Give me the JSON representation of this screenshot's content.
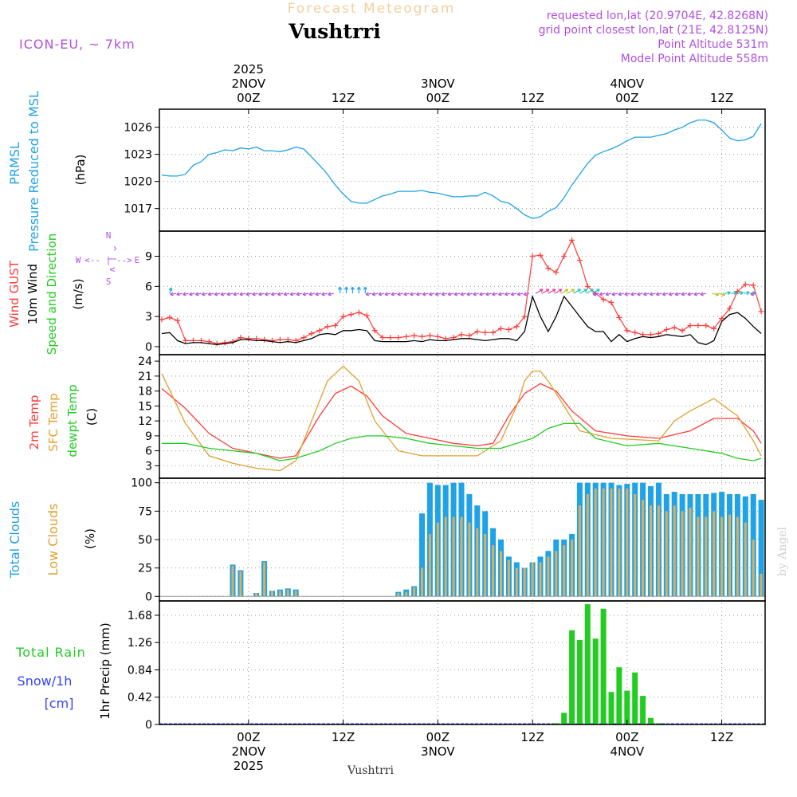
{
  "header": {
    "app_title": "Forecast Meteogram",
    "location": "Vushtrri",
    "model": "ICON-EU, ~ 7km",
    "info_lines": [
      "requested lon,lat (20.9704E, 42.8268N)",
      "grid point closest lon,lat (21E, 42.8125N)",
      "Point Altitude 531m",
      "Model Point Altitude 558m"
    ]
  },
  "time_axis": {
    "top_labels": [
      {
        "h": 24,
        "lines": [
          "2025",
          "2NOV",
          "00Z"
        ]
      },
      {
        "h": 36,
        "lines": [
          "12Z"
        ]
      },
      {
        "h": 48,
        "lines": [
          "3NOV",
          "00Z"
        ]
      },
      {
        "h": 60,
        "lines": [
          "12Z"
        ]
      },
      {
        "h": 72,
        "lines": [
          "4NOV",
          "00Z"
        ]
      },
      {
        "h": 84,
        "lines": [
          "12Z"
        ]
      }
    ],
    "bottom_labels": [
      {
        "h": 24,
        "lines": [
          "00Z",
          "2NOV",
          "2025"
        ]
      },
      {
        "h": 36,
        "lines": [
          "12Z"
        ]
      },
      {
        "h": 48,
        "lines": [
          "00Z",
          "3NOV"
        ]
      },
      {
        "h": 60,
        "lines": [
          "12Z"
        ]
      },
      {
        "h": 72,
        "lines": [
          "00Z",
          "4NOV"
        ]
      },
      {
        "h": 84,
        "lines": [
          "12Z"
        ]
      }
    ],
    "footer": "Vushtrri",
    "watermark": "by Angel"
  },
  "colors": {
    "pressure": "#1fa2e6",
    "gust": "#ff3b3b",
    "wind": "#000000",
    "green": "#22cc22",
    "orange": "#e0a030",
    "purple": "#b050e0",
    "blue_text": "#3344ff",
    "total_cloud": "#1fa2e6",
    "low_cloud": "#d8b060",
    "rain": "#22cc22",
    "grid": "#999999"
  },
  "chart_data": [
    {
      "type": "line",
      "name": "pressure",
      "labels": [
        "PRMSL",
        "Pressure Reduced to MSL",
        "(hPa)"
      ],
      "x_unit": "hours since 1 NOV 00Z",
      "xlim": [
        12.7,
        89.5
      ],
      "ylim": [
        1014.5,
        1028.0
      ],
      "yticks": [
        "1017",
        "1020",
        "1023",
        "1026"
      ],
      "series": [
        {
          "name": "PRMSL",
          "x": [
            13,
            14,
            15,
            16,
            17,
            18,
            19,
            20,
            21,
            22,
            23,
            24,
            25,
            26,
            27,
            28,
            29,
            30,
            31,
            32,
            33,
            34,
            35,
            36,
            37,
            38,
            39,
            40,
            41,
            42,
            43,
            44,
            45,
            46,
            47,
            48,
            49,
            50,
            51,
            52,
            53,
            54,
            55,
            56,
            57,
            58,
            59,
            60,
            61,
            62,
            63,
            64,
            65,
            66,
            67,
            68,
            69,
            70,
            71,
            72,
            73,
            74,
            75,
            76,
            77,
            78,
            79,
            80,
            81,
            82,
            83,
            84,
            85,
            86,
            87,
            88,
            89
          ],
          "values": [
            1020.7,
            1020.6,
            1020.6,
            1020.8,
            1021.8,
            1022.2,
            1023.0,
            1023.2,
            1023.5,
            1023.4,
            1023.7,
            1023.6,
            1023.8,
            1023.4,
            1023.4,
            1023.3,
            1023.5,
            1023.8,
            1023.6,
            1022.7,
            1021.8,
            1020.8,
            1019.6,
            1018.6,
            1017.8,
            1017.6,
            1017.6,
            1018.0,
            1018.4,
            1018.6,
            1018.9,
            1018.9,
            1018.9,
            1019.0,
            1018.8,
            1018.7,
            1018.5,
            1018.3,
            1018.3,
            1018.4,
            1018.4,
            1018.8,
            1018.4,
            1017.8,
            1017.6,
            1017.0,
            1016.3,
            1015.9,
            1016.1,
            1016.7,
            1017.1,
            1018.2,
            1019.6,
            1020.8,
            1022.0,
            1022.9,
            1023.3,
            1023.6,
            1024.0,
            1024.5,
            1024.9,
            1024.9,
            1024.9,
            1025.1,
            1025.3,
            1025.7,
            1026.0,
            1026.5,
            1026.8,
            1026.8,
            1026.5,
            1025.7,
            1024.8,
            1024.5,
            1024.6,
            1025.0,
            1026.4
          ]
        }
      ]
    },
    {
      "type": "line",
      "name": "wind",
      "labels": [
        "Wind GUST",
        "10m Wind",
        "Speed and Direction",
        "(m/s)"
      ],
      "compass": {
        "n": "N",
        "s": "S",
        "w": "W",
        "e": "E",
        "arrow_v": "^ | v",
        "arrow_h": "<-- | -->"
      },
      "xlim": [
        12.7,
        89.5
      ],
      "ylim": [
        -0.8,
        11.5
      ],
      "yticks": [
        "0",
        "3",
        "6",
        "9"
      ],
      "series": [
        {
          "name": "Wind GUST",
          "x": [
            13,
            14,
            15,
            16,
            17,
            18,
            19,
            20,
            21,
            22,
            23,
            24,
            25,
            26,
            27,
            28,
            29,
            30,
            31,
            32,
            33,
            34,
            35,
            36,
            37,
            38,
            39,
            40,
            41,
            42,
            43,
            44,
            45,
            46,
            47,
            48,
            49,
            50,
            51,
            52,
            53,
            54,
            55,
            56,
            57,
            58,
            59,
            60,
            61,
            62,
            63,
            64,
            65,
            66,
            67,
            68,
            69,
            70,
            71,
            72,
            73,
            74,
            75,
            76,
            77,
            78,
            79,
            80,
            81,
            82,
            83,
            84,
            85,
            86,
            87,
            88,
            89
          ],
          "values": [
            2.7,
            2.9,
            2.6,
            0.6,
            0.6,
            0.6,
            0.5,
            0.3,
            0.4,
            0.5,
            0.9,
            0.8,
            0.8,
            0.7,
            0.6,
            0.7,
            0.7,
            0.6,
            0.9,
            1.3,
            1.6,
            2.0,
            2.1,
            3.0,
            3.2,
            3.4,
            3.1,
            1.6,
            0.9,
            0.9,
            0.9,
            1.0,
            1.1,
            1.0,
            1.1,
            1.0,
            0.8,
            0.9,
            1.2,
            1.1,
            1.5,
            1.4,
            1.4,
            1.8,
            1.7,
            2.0,
            3.0,
            9.0,
            9.1,
            7.8,
            7.4,
            9.0,
            10.6,
            8.6,
            6.0,
            5.3,
            4.7,
            4.4,
            2.9,
            1.6,
            1.4,
            1.2,
            1.2,
            1.3,
            1.7,
            1.9,
            1.6,
            2.1,
            2.1,
            2.1,
            1.8,
            2.8,
            3.8,
            5.5,
            6.2,
            6.1,
            3.5
          ]
        },
        {
          "name": "10m Wind",
          "x": [
            13,
            14,
            15,
            16,
            17,
            18,
            19,
            20,
            21,
            22,
            23,
            24,
            25,
            26,
            27,
            28,
            29,
            30,
            31,
            32,
            33,
            34,
            35,
            36,
            37,
            38,
            39,
            40,
            41,
            42,
            43,
            44,
            45,
            46,
            47,
            48,
            49,
            50,
            51,
            52,
            53,
            54,
            55,
            56,
            57,
            58,
            59,
            60,
            61,
            62,
            63,
            64,
            65,
            66,
            67,
            68,
            69,
            70,
            71,
            72,
            73,
            74,
            75,
            76,
            77,
            78,
            79,
            80,
            81,
            82,
            83,
            84,
            85,
            86,
            87,
            88,
            89
          ],
          "values": [
            1.3,
            1.4,
            0.6,
            0.3,
            0.4,
            0.4,
            0.3,
            0.2,
            0.3,
            0.4,
            0.7,
            0.7,
            0.6,
            0.6,
            0.5,
            0.4,
            0.5,
            0.4,
            0.6,
            0.8,
            1.2,
            1.3,
            1.2,
            1.6,
            1.6,
            1.7,
            1.6,
            0.6,
            0.5,
            0.5,
            0.5,
            0.5,
            0.6,
            0.5,
            0.7,
            0.6,
            0.6,
            0.7,
            0.8,
            0.8,
            0.7,
            0.6,
            0.7,
            0.8,
            0.8,
            0.6,
            1.5,
            5.0,
            3.0,
            1.5,
            3.0,
            5.0,
            4.0,
            3.0,
            2.0,
            1.5,
            1.5,
            0.5,
            1.2,
            0.5,
            0.8,
            1.0,
            0.9,
            1.0,
            1.2,
            1.1,
            1.0,
            1.2,
            0.4,
            0.2,
            0.6,
            2.5,
            3.2,
            3.4,
            2.8,
            2.0,
            1.3
          ]
        }
      ]
    },
    {
      "type": "line",
      "name": "temperature",
      "labels": [
        "2m Temp",
        "SFC Temp",
        "dewpt Temp",
        "(C)"
      ],
      "xlim": [
        12.7,
        89.5
      ],
      "ylim": [
        0.5,
        25.3
      ],
      "yticks": [
        "3",
        "6",
        "9",
        "12",
        "15",
        "18",
        "21",
        "24"
      ],
      "series": [
        {
          "name": "2m Temp",
          "x": [
            13,
            16,
            19,
            22,
            25,
            28,
            30,
            33,
            35,
            37,
            39,
            41,
            44,
            47,
            50,
            53,
            55,
            57,
            59,
            61,
            63,
            65,
            68,
            72,
            76,
            80,
            83,
            86,
            88,
            89
          ],
          "values": [
            18.5,
            14.5,
            9.5,
            6.5,
            5.5,
            4.5,
            5.0,
            13.0,
            17.5,
            19.0,
            17.0,
            13.0,
            9.5,
            8.5,
            7.5,
            7.0,
            7.5,
            13.0,
            17.5,
            19.5,
            18.0,
            14.0,
            10.0,
            9.0,
            8.5,
            10.0,
            12.5,
            12.5,
            10.0,
            7.5
          ]
        },
        {
          "name": "SFC Temp",
          "x": [
            13,
            16,
            19,
            22,
            25,
            28,
            30,
            32,
            34,
            36,
            38,
            40,
            43,
            46,
            49,
            53,
            56,
            58,
            59,
            60,
            61,
            62,
            64,
            66,
            70,
            76,
            78,
            80,
            83,
            86,
            88,
            89
          ],
          "values": [
            21.5,
            11.5,
            5.0,
            3.5,
            2.5,
            2.0,
            4.0,
            12.0,
            20.0,
            23.0,
            20.0,
            12.0,
            6.0,
            5.0,
            5.0,
            5.0,
            8.0,
            15.0,
            20.0,
            22.0,
            22.0,
            20.0,
            15.0,
            10.0,
            8.5,
            8.0,
            12.0,
            14.0,
            16.5,
            13.0,
            8.0,
            5.0
          ]
        },
        {
          "name": "dewpt Temp",
          "x": [
            13,
            16,
            19,
            22,
            25,
            28,
            30,
            33,
            35,
            37,
            39,
            41,
            44,
            47,
            50,
            53,
            56,
            58,
            60,
            62,
            64,
            66,
            68,
            72,
            76,
            80,
            84,
            86,
            88,
            89
          ],
          "values": [
            7.5,
            7.5,
            6.5,
            6.0,
            5.5,
            4.0,
            4.5,
            6.0,
            7.5,
            8.5,
            9.0,
            9.0,
            8.5,
            7.5,
            7.0,
            6.5,
            6.5,
            7.5,
            8.5,
            10.5,
            11.5,
            11.5,
            8.5,
            7.0,
            7.5,
            6.5,
            5.5,
            4.5,
            4.0,
            4.5
          ]
        }
      ]
    },
    {
      "type": "bar",
      "name": "clouds",
      "labels": [
        "Total Clouds",
        "Low Clouds",
        "(%)"
      ],
      "xlim": [
        12.7,
        89.5
      ],
      "ylim": [
        -4,
        104
      ],
      "yticks": [
        "0",
        "25",
        "50",
        "75",
        "100"
      ],
      "series": [
        {
          "name": "Total Clouds",
          "x": [
            22,
            23,
            25,
            26,
            27,
            28,
            29,
            30,
            43,
            44,
            45,
            46,
            47,
            48,
            49,
            50,
            51,
            52,
            53,
            54,
            55,
            56,
            57,
            58,
            59,
            60,
            61,
            62,
            63,
            64,
            65,
            66,
            67,
            68,
            69,
            70,
            71,
            72,
            73,
            74,
            75,
            76,
            77,
            78,
            79,
            80,
            81,
            82,
            83,
            84,
            85,
            86,
            87,
            88,
            89
          ],
          "values": [
            28,
            23,
            3,
            31,
            5,
            6,
            7,
            6,
            4,
            6,
            9,
            73,
            100,
            98,
            98,
            100,
            100,
            90,
            80,
            75,
            60,
            50,
            35,
            30,
            25,
            30,
            35,
            40,
            50,
            50,
            55,
            100,
            100,
            100,
            100,
            100,
            98,
            99,
            100,
            100,
            97,
            100,
            90,
            92,
            90,
            90,
            90,
            90,
            91,
            92,
            90,
            90,
            88,
            90,
            85
          ]
        },
        {
          "name": "Low Clouds",
          "x": [
            22,
            23,
            25,
            26,
            27,
            28,
            29,
            30,
            43,
            44,
            45,
            46,
            47,
            48,
            49,
            50,
            51,
            52,
            53,
            54,
            55,
            56,
            57,
            58,
            59,
            60,
            61,
            62,
            63,
            64,
            65,
            66,
            67,
            68,
            69,
            70,
            71,
            72,
            73,
            74,
            75,
            76,
            77,
            78,
            79,
            80,
            81,
            82,
            83,
            84,
            85,
            86,
            87,
            88,
            89
          ],
          "values": [
            27,
            22,
            3,
            30,
            5,
            5,
            6,
            5,
            3,
            4,
            8,
            25,
            55,
            65,
            70,
            70,
            70,
            65,
            60,
            55,
            45,
            40,
            32,
            25,
            25,
            30,
            30,
            35,
            40,
            45,
            50,
            80,
            90,
            95,
            95,
            95,
            95,
            95,
            90,
            85,
            80,
            80,
            75,
            80,
            75,
            78,
            70,
            70,
            75,
            70,
            72,
            70,
            65,
            50,
            20
          ]
        }
      ]
    },
    {
      "type": "bar",
      "name": "precipitation",
      "labels": [
        "Total Rain",
        "Snow/1h",
        "[cm]",
        "1hr Precip (mm)"
      ],
      "xlim": [
        12.7,
        89.5
      ],
      "ylim": [
        0,
        1.9
      ],
      "yticks": [
        "0",
        "0.42",
        "0.84",
        "1.26",
        "1.68"
      ],
      "series": [
        {
          "name": "Total Rain",
          "x": [
            63,
            64,
            65,
            66,
            67,
            68,
            69,
            70,
            71,
            72,
            73,
            74,
            75,
            76,
            77
          ],
          "values": [
            0.02,
            0.18,
            1.45,
            1.3,
            1.85,
            1.32,
            1.78,
            0.5,
            0.88,
            0.52,
            0.8,
            0.44,
            0.1,
            0.02,
            0.01
          ]
        }
      ]
    }
  ]
}
